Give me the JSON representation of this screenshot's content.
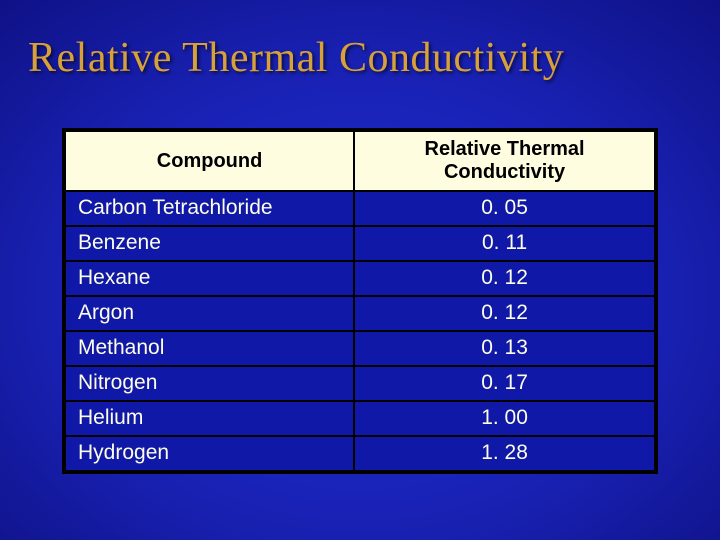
{
  "title": "Relative Thermal Conductivity",
  "table": {
    "columns": [
      "Compound",
      "Relative Thermal Conductivity"
    ],
    "rows": [
      [
        "Carbon Tetrachloride",
        "0. 05"
      ],
      [
        "Benzene",
        "0. 11"
      ],
      [
        "Hexane",
        "0. 12"
      ],
      [
        "Argon",
        "0. 12"
      ],
      [
        "Methanol",
        "0. 13"
      ],
      [
        "Nitrogen",
        "0. 17"
      ],
      [
        "Helium",
        "1. 00"
      ],
      [
        "Hydrogen",
        "1. 28"
      ]
    ],
    "header_bg": "#fffde0",
    "header_text_color": "#000000",
    "cell_bg": "#1018a8",
    "cell_text_color": "#fdfde8",
    "border_color": "#000000",
    "header_fontsize": 20,
    "cell_fontsize": 21,
    "col_widths_pct": [
      49,
      51
    ]
  },
  "slide": {
    "title_color": "#d8a038",
    "title_fontsize": 42,
    "bg_gradient_center": "#2030d8",
    "bg_gradient_edge": "#000050"
  }
}
